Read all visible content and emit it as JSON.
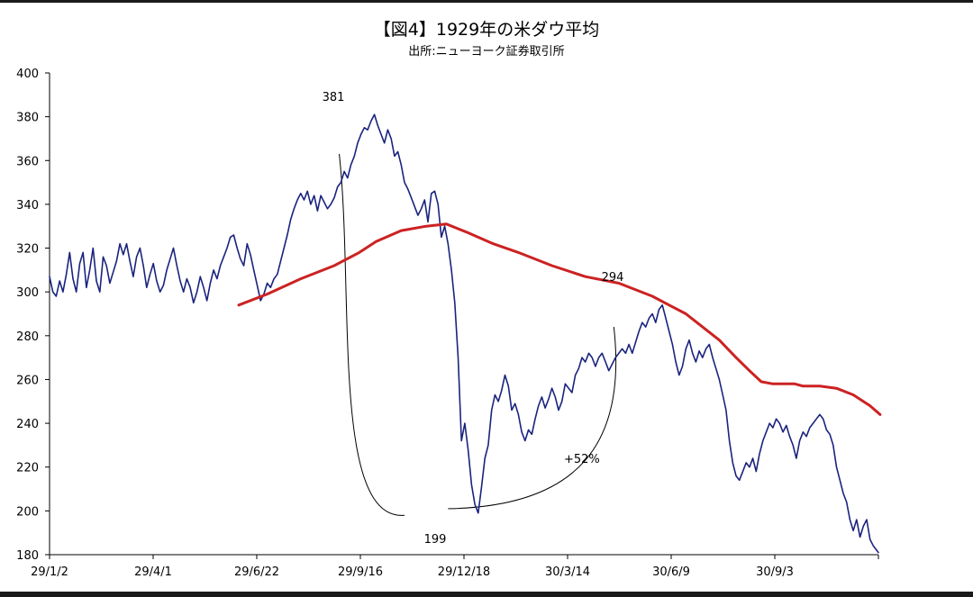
{
  "chart_data": {
    "type": "line",
    "title": "【図4】1929年の米ダウ平均",
    "subtitle": "出所:ニューヨーク証券取引所",
    "x_tick_labels": [
      "29/1/2",
      "29/4/1",
      "29/6/22",
      "29/9/16",
      "29/12/18",
      "30/3/14",
      "30/6/9",
      "30/9/3"
    ],
    "ylim": [
      180,
      400
    ],
    "y_ticks": [
      180,
      200,
      220,
      240,
      260,
      280,
      300,
      320,
      340,
      360,
      380,
      400
    ],
    "grid": false,
    "series": [
      {
        "name": "",
        "color": "#1a237e",
        "points": [
          [
            0,
            307
          ],
          [
            2,
            300
          ],
          [
            4,
            298
          ],
          [
            6,
            305
          ],
          [
            8,
            300
          ],
          [
            10,
            308
          ],
          [
            12,
            318
          ],
          [
            14,
            306
          ],
          [
            16,
            300
          ],
          [
            18,
            313
          ],
          [
            20,
            318
          ],
          [
            22,
            302
          ],
          [
            24,
            310
          ],
          [
            26,
            320
          ],
          [
            28,
            305
          ],
          [
            30,
            300
          ],
          [
            32,
            316
          ],
          [
            34,
            312
          ],
          [
            36,
            304
          ],
          [
            38,
            309
          ],
          [
            40,
            314
          ],
          [
            42,
            322
          ],
          [
            44,
            317
          ],
          [
            46,
            322
          ],
          [
            48,
            314
          ],
          [
            50,
            307
          ],
          [
            52,
            316
          ],
          [
            54,
            320
          ],
          [
            56,
            312
          ],
          [
            58,
            302
          ],
          [
            60,
            308
          ],
          [
            62,
            313
          ],
          [
            64,
            305
          ],
          [
            66,
            300
          ],
          [
            68,
            303
          ],
          [
            70,
            310
          ],
          [
            72,
            315
          ],
          [
            74,
            320
          ],
          [
            76,
            312
          ],
          [
            78,
            305
          ],
          [
            80,
            300
          ],
          [
            82,
            306
          ],
          [
            84,
            302
          ],
          [
            86,
            295
          ],
          [
            88,
            300
          ],
          [
            90,
            307
          ],
          [
            92,
            302
          ],
          [
            94,
            296
          ],
          [
            96,
            304
          ],
          [
            98,
            310
          ],
          [
            100,
            306
          ],
          [
            102,
            312
          ],
          [
            104,
            316
          ],
          [
            106,
            320
          ],
          [
            108,
            325
          ],
          [
            110,
            326
          ],
          [
            112,
            320
          ],
          [
            114,
            315
          ],
          [
            116,
            312
          ],
          [
            118,
            322
          ],
          [
            120,
            317
          ],
          [
            122,
            310
          ],
          [
            124,
            303
          ],
          [
            126,
            296
          ],
          [
            128,
            299
          ],
          [
            130,
            304
          ],
          [
            132,
            302
          ],
          [
            134,
            306
          ],
          [
            136,
            308
          ],
          [
            138,
            314
          ],
          [
            140,
            320
          ],
          [
            142,
            326
          ],
          [
            144,
            333
          ],
          [
            146,
            338
          ],
          [
            148,
            342
          ],
          [
            150,
            345
          ],
          [
            152,
            342
          ],
          [
            154,
            346
          ],
          [
            156,
            340
          ],
          [
            158,
            344
          ],
          [
            160,
            337
          ],
          [
            162,
            344
          ],
          [
            164,
            341
          ],
          [
            166,
            338
          ],
          [
            168,
            340
          ],
          [
            170,
            343
          ],
          [
            172,
            348
          ],
          [
            174,
            350
          ],
          [
            176,
            355
          ],
          [
            178,
            352
          ],
          [
            180,
            358
          ],
          [
            182,
            362
          ],
          [
            184,
            368
          ],
          [
            186,
            372
          ],
          [
            188,
            375
          ],
          [
            190,
            374
          ],
          [
            192,
            378
          ],
          [
            194,
            381
          ],
          [
            196,
            376
          ],
          [
            198,
            372
          ],
          [
            200,
            368
          ],
          [
            202,
            374
          ],
          [
            204,
            370
          ],
          [
            206,
            362
          ],
          [
            208,
            364
          ],
          [
            210,
            358
          ],
          [
            212,
            350
          ],
          [
            214,
            347
          ],
          [
            216,
            343
          ],
          [
            218,
            339
          ],
          [
            220,
            335
          ],
          [
            222,
            338
          ],
          [
            224,
            342
          ],
          [
            226,
            332
          ],
          [
            228,
            345
          ],
          [
            230,
            346
          ],
          [
            232,
            340
          ],
          [
            234,
            325
          ],
          [
            236,
            330
          ],
          [
            238,
            322
          ],
          [
            240,
            310
          ],
          [
            242,
            295
          ],
          [
            244,
            270
          ],
          [
            246,
            232
          ],
          [
            248,
            240
          ],
          [
            250,
            228
          ],
          [
            252,
            212
          ],
          [
            254,
            203
          ],
          [
            256,
            199
          ],
          [
            258,
            211
          ],
          [
            260,
            224
          ],
          [
            262,
            230
          ],
          [
            264,
            246
          ],
          [
            266,
            253
          ],
          [
            268,
            250
          ],
          [
            270,
            255
          ],
          [
            272,
            262
          ],
          [
            274,
            257
          ],
          [
            276,
            246
          ],
          [
            278,
            249
          ],
          [
            280,
            244
          ],
          [
            282,
            236
          ],
          [
            284,
            232
          ],
          [
            286,
            237
          ],
          [
            288,
            235
          ],
          [
            290,
            242
          ],
          [
            292,
            248
          ],
          [
            294,
            252
          ],
          [
            296,
            247
          ],
          [
            298,
            251
          ],
          [
            300,
            256
          ],
          [
            302,
            252
          ],
          [
            304,
            246
          ],
          [
            306,
            250
          ],
          [
            308,
            258
          ],
          [
            310,
            256
          ],
          [
            312,
            254
          ],
          [
            314,
            262
          ],
          [
            316,
            265
          ],
          [
            318,
            270
          ],
          [
            320,
            268
          ],
          [
            322,
            272
          ],
          [
            324,
            270
          ],
          [
            326,
            266
          ],
          [
            328,
            270
          ],
          [
            330,
            272
          ],
          [
            332,
            268
          ],
          [
            334,
            264
          ],
          [
            336,
            267
          ],
          [
            338,
            270
          ],
          [
            340,
            272
          ],
          [
            342,
            274
          ],
          [
            344,
            272
          ],
          [
            346,
            276
          ],
          [
            348,
            272
          ],
          [
            350,
            277
          ],
          [
            352,
            282
          ],
          [
            354,
            286
          ],
          [
            356,
            284
          ],
          [
            358,
            288
          ],
          [
            360,
            290
          ],
          [
            362,
            286
          ],
          [
            364,
            292
          ],
          [
            366,
            294
          ],
          [
            368,
            288
          ],
          [
            370,
            282
          ],
          [
            372,
            276
          ],
          [
            374,
            268
          ],
          [
            376,
            262
          ],
          [
            378,
            266
          ],
          [
            380,
            274
          ],
          [
            382,
            278
          ],
          [
            384,
            272
          ],
          [
            386,
            268
          ],
          [
            388,
            273
          ],
          [
            390,
            270
          ],
          [
            392,
            274
          ],
          [
            394,
            276
          ],
          [
            396,
            270
          ],
          [
            398,
            265
          ],
          [
            400,
            260
          ],
          [
            402,
            253
          ],
          [
            404,
            246
          ],
          [
            406,
            232
          ],
          [
            408,
            222
          ],
          [
            410,
            216
          ],
          [
            412,
            214
          ],
          [
            414,
            218
          ],
          [
            416,
            222
          ],
          [
            418,
            220
          ],
          [
            420,
            224
          ],
          [
            422,
            218
          ],
          [
            424,
            226
          ],
          [
            426,
            232
          ],
          [
            428,
            236
          ],
          [
            430,
            240
          ],
          [
            432,
            238
          ],
          [
            434,
            242
          ],
          [
            436,
            240
          ],
          [
            438,
            236
          ],
          [
            440,
            239
          ],
          [
            442,
            234
          ],
          [
            444,
            230
          ],
          [
            446,
            224
          ],
          [
            448,
            232
          ],
          [
            450,
            236
          ],
          [
            452,
            234
          ],
          [
            454,
            238
          ],
          [
            456,
            240
          ],
          [
            458,
            242
          ],
          [
            460,
            244
          ],
          [
            462,
            242
          ],
          [
            464,
            237
          ],
          [
            466,
            235
          ],
          [
            468,
            230
          ],
          [
            470,
            220
          ],
          [
            472,
            214
          ],
          [
            474,
            208
          ],
          [
            476,
            204
          ],
          [
            478,
            196
          ],
          [
            480,
            191
          ],
          [
            482,
            196
          ],
          [
            484,
            188
          ],
          [
            486,
            193
          ],
          [
            488,
            196
          ],
          [
            490,
            187
          ],
          [
            492,
            184
          ],
          [
            494,
            182
          ],
          [
            495,
            181
          ]
        ]
      },
      {
        "name": "",
        "color": "#cc2222",
        "points": [
          [
            113,
            294
          ],
          [
            130,
            299
          ],
          [
            150,
            306
          ],
          [
            170,
            312
          ],
          [
            185,
            318
          ],
          [
            195,
            323
          ],
          [
            210,
            328
          ],
          [
            225,
            330
          ],
          [
            237,
            331
          ],
          [
            250,
            327
          ],
          [
            265,
            322
          ],
          [
            280,
            318
          ],
          [
            300,
            312
          ],
          [
            320,
            307
          ],
          [
            340,
            304
          ],
          [
            360,
            298
          ],
          [
            370,
            294
          ],
          [
            380,
            290
          ],
          [
            390,
            284
          ],
          [
            400,
            278
          ],
          [
            410,
            270
          ],
          [
            418,
            264
          ],
          [
            425,
            259
          ],
          [
            432,
            258
          ],
          [
            440,
            258
          ],
          [
            445,
            258
          ],
          [
            450,
            257
          ],
          [
            460,
            257
          ],
          [
            470,
            256
          ],
          [
            480,
            253
          ],
          [
            490,
            248
          ],
          [
            496,
            244
          ]
        ]
      }
    ],
    "annotations": [
      {
        "text": "381"
      },
      {
        "text": "199"
      },
      {
        "text": "294"
      },
      {
        "text": "+52%"
      }
    ]
  }
}
